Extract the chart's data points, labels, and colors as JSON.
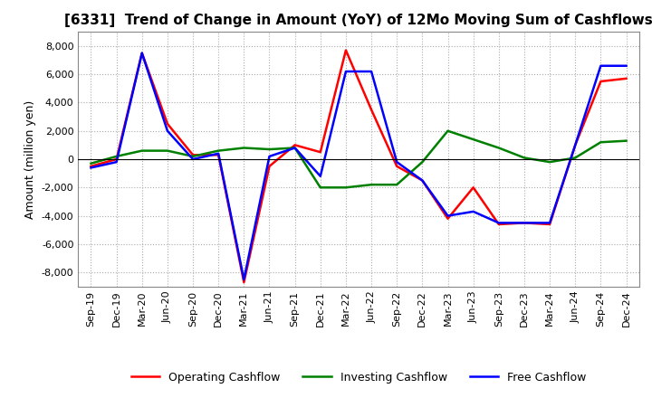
{
  "title": "[6331]  Trend of Change in Amount (YoY) of 12Mo Moving Sum of Cashflows",
  "ylabel": "Amount (million yen)",
  "x_labels": [
    "Sep-19",
    "Dec-19",
    "Mar-20",
    "Jun-20",
    "Sep-20",
    "Dec-20",
    "Mar-21",
    "Jun-21",
    "Sep-21",
    "Dec-21",
    "Mar-22",
    "Jun-22",
    "Sep-22",
    "Dec-22",
    "Mar-23",
    "Jun-23",
    "Sep-23",
    "Dec-23",
    "Mar-24",
    "Jun-24",
    "Sep-24",
    "Dec-24"
  ],
  "operating": [
    -500,
    0,
    7500,
    2500,
    300,
    300,
    -8700,
    -500,
    1000,
    500,
    7700,
    3500,
    -500,
    -1500,
    -4200,
    -2000,
    -4600,
    -4500,
    -4600,
    1000,
    5500,
    5700
  ],
  "investing": [
    -300,
    200,
    600,
    600,
    200,
    600,
    800,
    700,
    800,
    -2000,
    -2000,
    -1800,
    -1800,
    -200,
    2000,
    1400,
    800,
    100,
    -200,
    100,
    1200,
    1300
  ],
  "free": [
    -600,
    -200,
    7500,
    2000,
    0,
    400,
    -8500,
    200,
    800,
    -1200,
    6200,
    6200,
    -200,
    -1500,
    -4000,
    -3700,
    -4500,
    -4500,
    -4500,
    1000,
    6600,
    6600
  ],
  "operating_color": "#ff0000",
  "investing_color": "#008000",
  "free_color": "#0000ff",
  "ylim": [
    -9000,
    9000
  ],
  "yticks": [
    -8000,
    -6000,
    -4000,
    -2000,
    0,
    2000,
    4000,
    6000,
    8000
  ],
  "background_color": "#ffffff",
  "grid_color": "#aaaaaa",
  "title_fontsize": 11,
  "axis_fontsize": 9,
  "tick_fontsize": 8,
  "legend_fontsize": 9
}
